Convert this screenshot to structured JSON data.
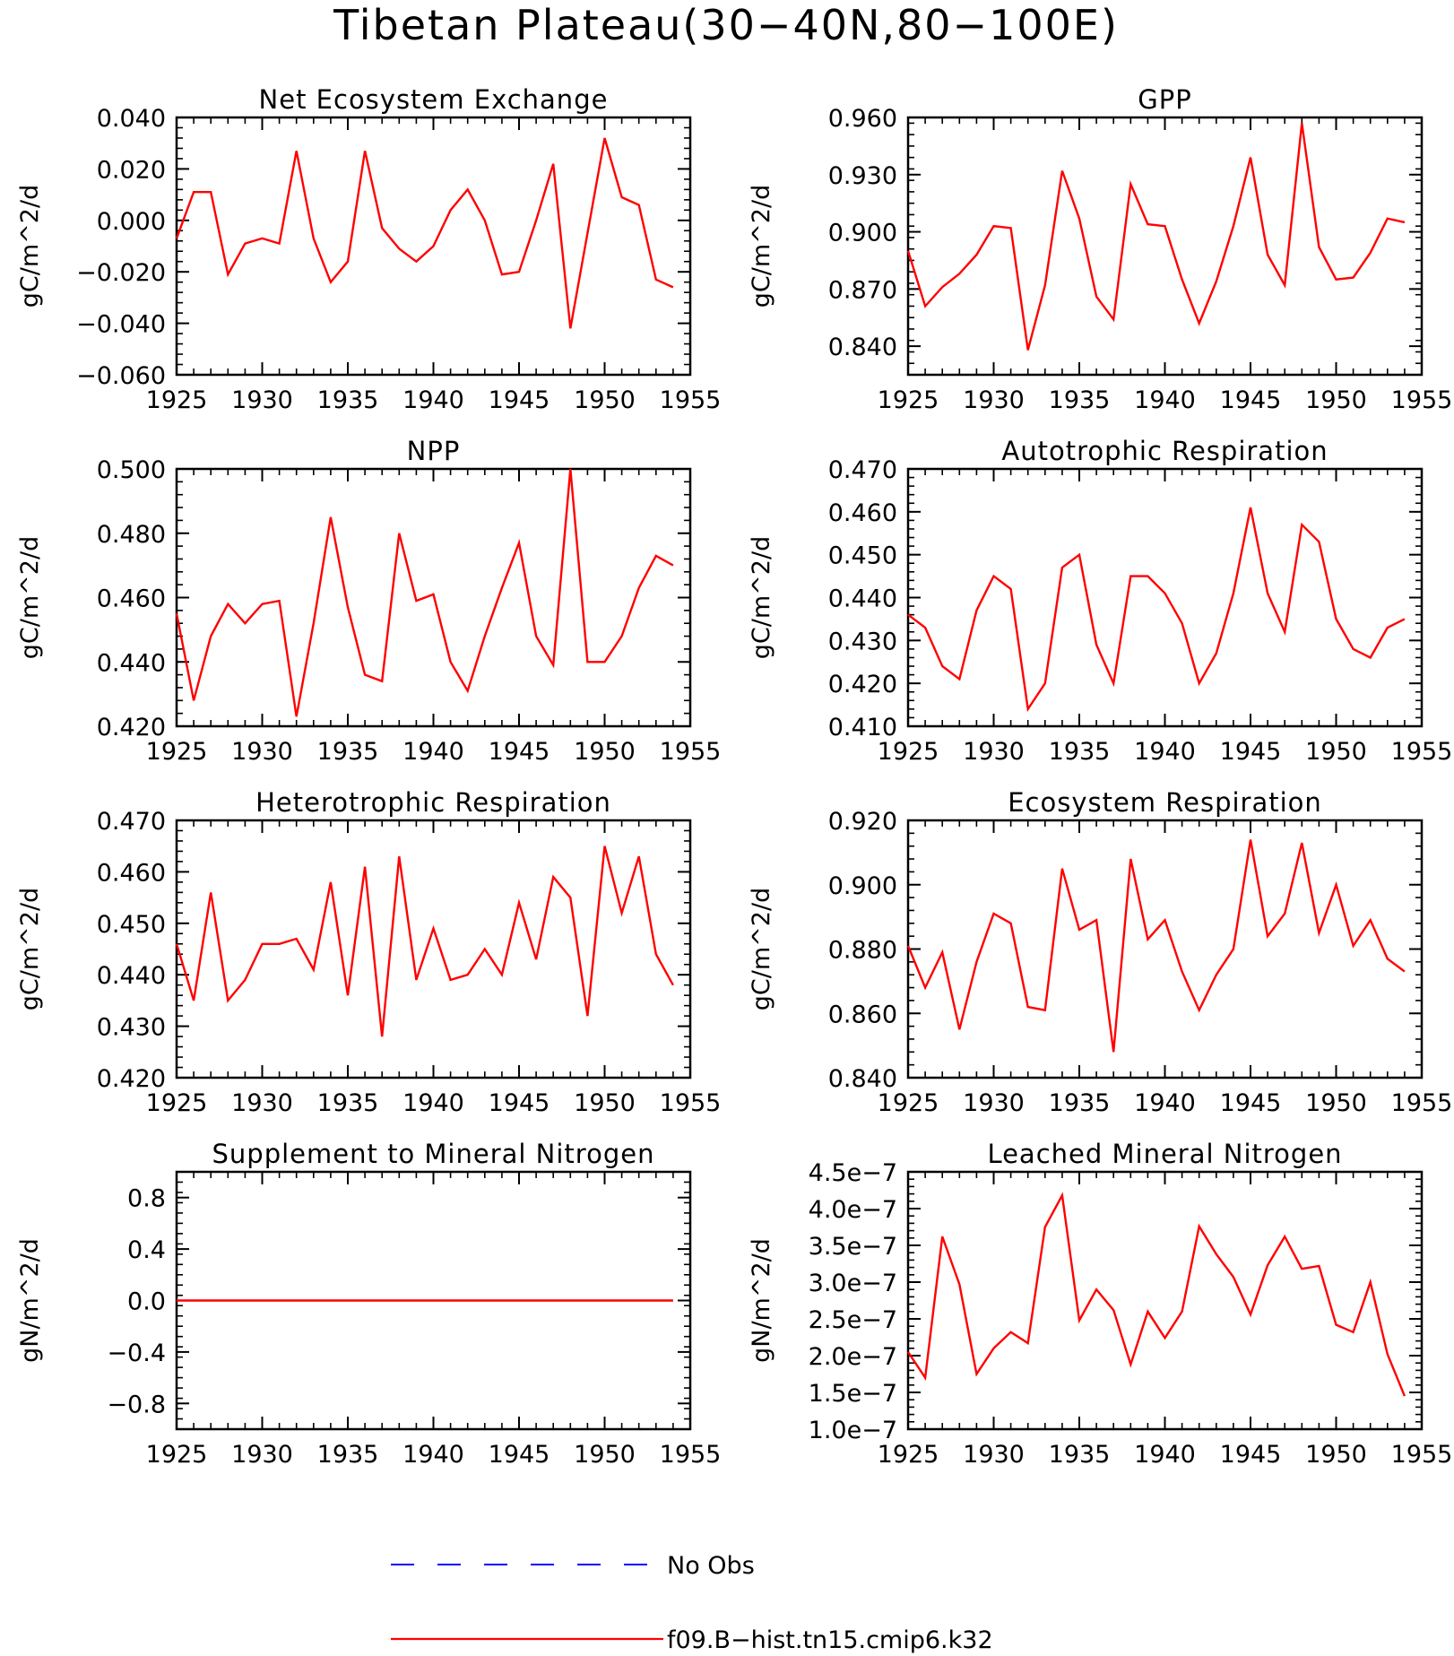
{
  "figure_title": "Tibetan Plateau(30−40N,80−100E)",
  "legend": {
    "entries": [
      {
        "label": "No Obs",
        "color": "#0000ff",
        "style": "dashed"
      },
      {
        "label": "f09.B−hist.tn15.cmip6.k32",
        "color": "#ff0000",
        "style": "solid"
      }
    ]
  },
  "chart_data": [
    {
      "type": "line",
      "title": "Net Ecosystem Exchange",
      "ylabel": "gC/m^2/d",
      "xlim": [
        1925,
        1955
      ],
      "ylim": [
        -0.06,
        0.04
      ],
      "xticks": [
        1925,
        1930,
        1935,
        1940,
        1945,
        1950,
        1955
      ],
      "xtick_labels": [
        "1925",
        "1930",
        "1935",
        "1940",
        "1945",
        "1950",
        "1955"
      ],
      "yticks": [
        -0.06,
        -0.04,
        -0.02,
        0.0,
        0.02,
        0.04
      ],
      "ytick_labels": [
        "−0.060",
        "−0.040",
        "−0.020",
        "0.000",
        "0.020",
        "0.040"
      ],
      "x": [
        1925,
        1926,
        1927,
        1928,
        1929,
        1930,
        1931,
        1932,
        1933,
        1934,
        1935,
        1936,
        1937,
        1938,
        1939,
        1940,
        1941,
        1942,
        1943,
        1944,
        1945,
        1946,
        1947,
        1948,
        1949,
        1950,
        1951,
        1952,
        1953,
        1954
      ],
      "series": [
        {
          "color": "#ff0000",
          "values": [
            -0.007,
            0.011,
            0.011,
            -0.021,
            -0.009,
            -0.007,
            -0.009,
            0.027,
            -0.007,
            -0.024,
            -0.016,
            0.027,
            -0.003,
            -0.011,
            -0.016,
            -0.01,
            0.004,
            0.012,
            0.0,
            -0.021,
            -0.02,
            0.0,
            0.022,
            -0.042,
            -0.005,
            0.032,
            0.009,
            0.006,
            -0.023,
            -0.026
          ]
        }
      ]
    },
    {
      "type": "line",
      "title": "GPP",
      "ylabel": "gC/m^2/d",
      "xlim": [
        1925,
        1955
      ],
      "ylim": [
        0.825,
        0.96
      ],
      "xticks": [
        1925,
        1930,
        1935,
        1940,
        1945,
        1950,
        1955
      ],
      "xtick_labels": [
        "1925",
        "1930",
        "1935",
        "1940",
        "1945",
        "1950",
        "1955"
      ],
      "yticks": [
        0.84,
        0.87,
        0.9,
        0.93,
        0.96
      ],
      "ytick_labels": [
        "0.840",
        "0.870",
        "0.900",
        "0.930",
        "0.960"
      ],
      "x": [
        1925,
        1926,
        1927,
        1928,
        1929,
        1930,
        1931,
        1932,
        1933,
        1934,
        1935,
        1936,
        1937,
        1938,
        1939,
        1940,
        1941,
        1942,
        1943,
        1944,
        1945,
        1946,
        1947,
        1948,
        1949,
        1950,
        1951,
        1952,
        1953,
        1954
      ],
      "series": [
        {
          "color": "#ff0000",
          "values": [
            0.89,
            0.861,
            0.871,
            0.878,
            0.888,
            0.903,
            0.902,
            0.838,
            0.872,
            0.932,
            0.907,
            0.866,
            0.854,
            0.925,
            0.904,
            0.903,
            0.875,
            0.852,
            0.874,
            0.903,
            0.939,
            0.888,
            0.872,
            0.957,
            0.892,
            0.875,
            0.876,
            0.889,
            0.907,
            0.905
          ]
        }
      ]
    },
    {
      "type": "line",
      "title": "NPP",
      "ylabel": "gC/m^2/d",
      "xlim": [
        1925,
        1955
      ],
      "ylim": [
        0.42,
        0.5
      ],
      "xticks": [
        1925,
        1930,
        1935,
        1940,
        1945,
        1950,
        1955
      ],
      "xtick_labels": [
        "1925",
        "1930",
        "1935",
        "1940",
        "1945",
        "1950",
        "1955"
      ],
      "yticks": [
        0.42,
        0.44,
        0.46,
        0.48,
        0.5
      ],
      "ytick_labels": [
        "0.420",
        "0.440",
        "0.460",
        "0.480",
        "0.500"
      ],
      "x": [
        1925,
        1926,
        1927,
        1928,
        1929,
        1930,
        1931,
        1932,
        1933,
        1934,
        1935,
        1936,
        1937,
        1938,
        1939,
        1940,
        1941,
        1942,
        1943,
        1944,
        1945,
        1946,
        1947,
        1948,
        1949,
        1950,
        1951,
        1952,
        1953,
        1954
      ],
      "series": [
        {
          "color": "#ff0000",
          "values": [
            0.455,
            0.428,
            0.448,
            0.458,
            0.452,
            0.458,
            0.459,
            0.423,
            0.452,
            0.485,
            0.457,
            0.436,
            0.434,
            0.48,
            0.459,
            0.461,
            0.44,
            0.431,
            0.448,
            0.463,
            0.477,
            0.448,
            0.439,
            0.5,
            0.44,
            0.44,
            0.448,
            0.463,
            0.473,
            0.47
          ]
        }
      ]
    },
    {
      "type": "line",
      "title": "Autotrophic Respiration",
      "ylabel": "gC/m^2/d",
      "xlim": [
        1925,
        1955
      ],
      "ylim": [
        0.41,
        0.47
      ],
      "xticks": [
        1925,
        1930,
        1935,
        1940,
        1945,
        1950,
        1955
      ],
      "xtick_labels": [
        "1925",
        "1930",
        "1935",
        "1940",
        "1945",
        "1950",
        "1955"
      ],
      "yticks": [
        0.41,
        0.42,
        0.43,
        0.44,
        0.45,
        0.46,
        0.47
      ],
      "ytick_labels": [
        "0.410",
        "0.420",
        "0.430",
        "0.440",
        "0.450",
        "0.460",
        "0.470"
      ],
      "x": [
        1925,
        1926,
        1927,
        1928,
        1929,
        1930,
        1931,
        1932,
        1933,
        1934,
        1935,
        1936,
        1937,
        1938,
        1939,
        1940,
        1941,
        1942,
        1943,
        1944,
        1945,
        1946,
        1947,
        1948,
        1949,
        1950,
        1951,
        1952,
        1953,
        1954
      ],
      "series": [
        {
          "color": "#ff0000",
          "values": [
            0.436,
            0.433,
            0.424,
            0.421,
            0.437,
            0.445,
            0.442,
            0.414,
            0.42,
            0.447,
            0.45,
            0.429,
            0.42,
            0.445,
            0.445,
            0.441,
            0.434,
            0.42,
            0.427,
            0.441,
            0.461,
            0.441,
            0.432,
            0.457,
            0.453,
            0.435,
            0.428,
            0.426,
            0.433,
            0.435
          ]
        }
      ]
    },
    {
      "type": "line",
      "title": "Heterotrophic Respiration",
      "ylabel": "gC/m^2/d",
      "xlim": [
        1925,
        1955
      ],
      "ylim": [
        0.42,
        0.47
      ],
      "xticks": [
        1925,
        1930,
        1935,
        1940,
        1945,
        1950,
        1955
      ],
      "xtick_labels": [
        "1925",
        "1930",
        "1935",
        "1940",
        "1945",
        "1950",
        "1955"
      ],
      "yticks": [
        0.42,
        0.43,
        0.44,
        0.45,
        0.46,
        0.47
      ],
      "ytick_labels": [
        "0.420",
        "0.430",
        "0.440",
        "0.450",
        "0.460",
        "0.470"
      ],
      "x": [
        1925,
        1926,
        1927,
        1928,
        1929,
        1930,
        1931,
        1932,
        1933,
        1934,
        1935,
        1936,
        1937,
        1938,
        1939,
        1940,
        1941,
        1942,
        1943,
        1944,
        1945,
        1946,
        1947,
        1948,
        1949,
        1950,
        1951,
        1952,
        1953,
        1954
      ],
      "series": [
        {
          "color": "#ff0000",
          "values": [
            0.446,
            0.435,
            0.456,
            0.435,
            0.439,
            0.446,
            0.446,
            0.447,
            0.441,
            0.458,
            0.436,
            0.461,
            0.428,
            0.463,
            0.439,
            0.449,
            0.439,
            0.44,
            0.445,
            0.44,
            0.454,
            0.443,
            0.459,
            0.455,
            0.432,
            0.465,
            0.452,
            0.463,
            0.444,
            0.438
          ]
        }
      ]
    },
    {
      "type": "line",
      "title": "Ecosystem Respiration",
      "ylabel": "gC/m^2/d",
      "xlim": [
        1925,
        1955
      ],
      "ylim": [
        0.84,
        0.92
      ],
      "xticks": [
        1925,
        1930,
        1935,
        1940,
        1945,
        1950,
        1955
      ],
      "xtick_labels": [
        "1925",
        "1930",
        "1935",
        "1940",
        "1945",
        "1950",
        "1955"
      ],
      "yticks": [
        0.84,
        0.86,
        0.88,
        0.9,
        0.92
      ],
      "ytick_labels": [
        "0.840",
        "0.860",
        "0.880",
        "0.900",
        "0.920"
      ],
      "x": [
        1925,
        1926,
        1927,
        1928,
        1929,
        1930,
        1931,
        1932,
        1933,
        1934,
        1935,
        1936,
        1937,
        1938,
        1939,
        1940,
        1941,
        1942,
        1943,
        1944,
        1945,
        1946,
        1947,
        1948,
        1949,
        1950,
        1951,
        1952,
        1953,
        1954
      ],
      "series": [
        {
          "color": "#ff0000",
          "values": [
            0.881,
            0.868,
            0.879,
            0.855,
            0.876,
            0.891,
            0.888,
            0.862,
            0.861,
            0.905,
            0.886,
            0.889,
            0.848,
            0.908,
            0.883,
            0.889,
            0.873,
            0.861,
            0.872,
            0.88,
            0.914,
            0.884,
            0.891,
            0.913,
            0.885,
            0.9,
            0.881,
            0.889,
            0.877,
            0.873
          ]
        }
      ]
    },
    {
      "type": "line",
      "title": "Supplement to Mineral Nitrogen",
      "ylabel": "gN/m^2/d",
      "xlim": [
        1925,
        1955
      ],
      "ylim": [
        -1.0,
        1.0
      ],
      "xticks": [
        1925,
        1930,
        1935,
        1940,
        1945,
        1950,
        1955
      ],
      "xtick_labels": [
        "1925",
        "1930",
        "1935",
        "1940",
        "1945",
        "1950",
        "1955"
      ],
      "yticks": [
        -0.8,
        -0.4,
        0.0,
        0.4,
        0.8
      ],
      "ytick_labels": [
        "−0.8",
        "−0.4",
        "0.0",
        "0.4",
        "0.8"
      ],
      "x": [
        1925,
        1926,
        1927,
        1928,
        1929,
        1930,
        1931,
        1932,
        1933,
        1934,
        1935,
        1936,
        1937,
        1938,
        1939,
        1940,
        1941,
        1942,
        1943,
        1944,
        1945,
        1946,
        1947,
        1948,
        1949,
        1950,
        1951,
        1952,
        1953,
        1954
      ],
      "series": [
        {
          "color": "#ff0000",
          "values": [
            0,
            0,
            0,
            0,
            0,
            0,
            0,
            0,
            0,
            0,
            0,
            0,
            0,
            0,
            0,
            0,
            0,
            0,
            0,
            0,
            0,
            0,
            0,
            0,
            0,
            0,
            0,
            0,
            0,
            0
          ]
        }
      ]
    },
    {
      "type": "line",
      "title": "Leached Mineral Nitrogen",
      "ylabel": "gN/m^2/d",
      "xlim": [
        1925,
        1955
      ],
      "ylim": [
        1e-07,
        4.5e-07
      ],
      "xticks": [
        1925,
        1930,
        1935,
        1940,
        1945,
        1950,
        1955
      ],
      "xtick_labels": [
        "1925",
        "1930",
        "1935",
        "1940",
        "1945",
        "1950",
        "1955"
      ],
      "yticks": [
        1e-07,
        1.5e-07,
        2e-07,
        2.5e-07,
        3e-07,
        3.5e-07,
        4e-07,
        4.5e-07
      ],
      "ytick_labels": [
        "1.0e−7",
        "1.5e−7",
        "2.0e−7",
        "2.5e−7",
        "3.0e−7",
        "3.5e−7",
        "4.0e−7",
        "4.5e−7"
      ],
      "x": [
        1925,
        1926,
        1927,
        1928,
        1929,
        1930,
        1931,
        1932,
        1933,
        1934,
        1935,
        1936,
        1937,
        1938,
        1939,
        1940,
        1941,
        1942,
        1943,
        1944,
        1945,
        1946,
        1947,
        1948,
        1949,
        1950,
        1951,
        1952,
        1953,
        1954
      ],
      "series": [
        {
          "color": "#ff0000",
          "values": [
            2.05e-07,
            1.7e-07,
            3.62e-07,
            2.97e-07,
            1.75e-07,
            2.1e-07,
            2.32e-07,
            2.17e-07,
            3.75e-07,
            4.18e-07,
            2.48e-07,
            2.9e-07,
            2.62e-07,
            1.88e-07,
            2.6e-07,
            2.24e-07,
            2.6e-07,
            3.76e-07,
            3.38e-07,
            3.07e-07,
            2.56e-07,
            3.23e-07,
            3.62e-07,
            3.18e-07,
            3.22e-07,
            2.42e-07,
            2.32e-07,
            3e-07,
            2.02e-07,
            1.45e-07
          ]
        }
      ]
    }
  ]
}
